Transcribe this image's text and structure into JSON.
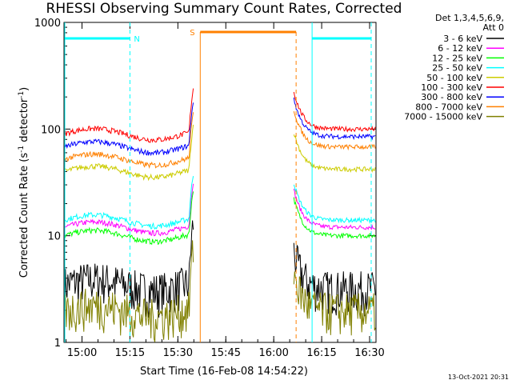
{
  "chart_data": {
    "type": "line",
    "title": "RHESSI Observing Summary Count Rates, Corrected",
    "xlabel": "Start Time (16-Feb-08 14:54:22)",
    "ylabel_parts": [
      "Corrected Count Rate (s",
      "-1",
      " detector",
      "-1",
      ")"
    ],
    "y_scale": "log",
    "ylim": [
      1,
      1000
    ],
    "xlim": [
      "14:54:22",
      "16:32"
    ],
    "x_ticks": [
      "15:00",
      "15:15",
      "15:30",
      "15:45",
      "16:00",
      "16:15",
      "16:30"
    ],
    "y_ticks": [
      "1",
      "10",
      "100",
      "1000"
    ],
    "legend_header": [
      "Det 1,3,4,5,6,9,",
      "Att 0"
    ],
    "series": [
      {
        "name": "3 - 6 keV",
        "color": "#000000"
      },
      {
        "name": "6 - 12 keV",
        "color": "#ff00ff"
      },
      {
        "name": "12 - 25 keV",
        "color": "#00ff00"
      },
      {
        "name": "25 - 50 keV",
        "color": "#00ffff"
      },
      {
        "name": "50 - 100 keV",
        "color": "#cccc00"
      },
      {
        "name": "100 - 300 keV",
        "color": "#ff0000"
      },
      {
        "name": "300 - 800 keV",
        "color": "#0000ff"
      },
      {
        "name": "800 - 7000 keV",
        "color": "#ff8000"
      },
      {
        "name": "7000 - 15000 keV",
        "color": "#808000"
      }
    ],
    "series_levels": {
      "3 - 6 keV": {
        "before": 3.5,
        "after": 3.2
      },
      "6 - 12 keV": {
        "before": 12,
        "after": 12
      },
      "12 - 25 keV": {
        "before": 10,
        "after": 10
      },
      "25 - 50 keV": {
        "before": 14,
        "after": 14
      },
      "50 - 100 keV": {
        "before": 40,
        "after": 42
      },
      "100 - 300 keV": {
        "before": 90,
        "after": 100
      },
      "300 - 800 keV": {
        "before": 68,
        "after": 85
      },
      "800 - 7000 keV": {
        "before": 52,
        "after": 68
      },
      "7000 - 15000 keV": {
        "before": 2,
        "after": 2
      }
    },
    "flag_segments": {
      "night_label": "N",
      "saa_label": "S",
      "night_color": "#00ffff",
      "saa_color": "#ff8000",
      "night_before": [
        "14:54:22",
        "15:15"
      ],
      "saa": [
        "15:37",
        "16:07"
      ],
      "night_after": [
        "16:12",
        "16:32"
      ]
    },
    "footer": "13-Oct-2021 20:31"
  }
}
